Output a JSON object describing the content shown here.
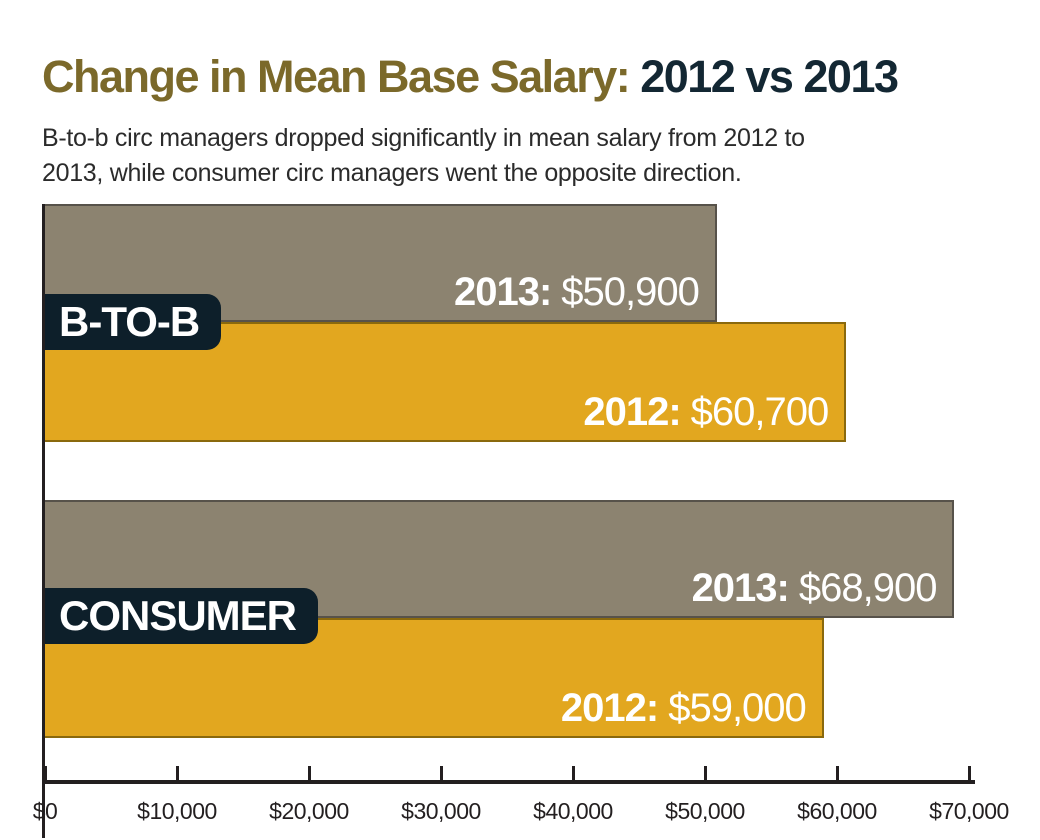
{
  "header": {
    "title_main": "Change in Mean Base Salary: ",
    "title_highlight": "2012 vs 2013",
    "subtitle": "B-to-b circ managers dropped significantly in mean salary from 2012 to 2013, while consumer circ managers went the opposite direction."
  },
  "colors": {
    "title_olive": "#7b692a",
    "title_navy": "#132733",
    "bar_2013_gray": "#8c8370",
    "bar_2012_gold": "#e2a71f",
    "badge_navy": "#0d1f2a",
    "axis_dark": "#231f20",
    "bar_label_white": "#ffffff"
  },
  "chart_data": {
    "type": "bar",
    "orientation": "horizontal",
    "title": "Change in Mean Base Salary: 2012 vs 2013",
    "categories": [
      "B-TO-B",
      "CONSUMER"
    ],
    "series": [
      {
        "name": "2013",
        "values": [
          50900,
          68900
        ],
        "color": "#8c8370"
      },
      {
        "name": "2012",
        "values": [
          60700,
          59000
        ],
        "color": "#e2a71f"
      }
    ],
    "xlim": [
      0,
      70000
    ],
    "x_tick_labels": [
      "$0",
      "$10,000",
      "$20,000",
      "$30,000",
      "$40,000",
      "$50,000",
      "$60,000",
      "$70,000"
    ],
    "grid": "off",
    "legend": "none",
    "value_labels_inside_bars": true
  },
  "groups": [
    {
      "label": "B-TO-B",
      "bars": [
        {
          "series": "2013",
          "year_label": "2013:",
          "amount_label": "$50,900",
          "value": 50900
        },
        {
          "series": "2012",
          "year_label": "2012:",
          "amount_label": "$60,700",
          "value": 60700
        }
      ]
    },
    {
      "label": "CONSUMER",
      "bars": [
        {
          "series": "2013",
          "year_label": "2013:",
          "amount_label": "$68,900",
          "value": 68900
        },
        {
          "series": "2012",
          "year_label": "2012:",
          "amount_label": "$59,000",
          "value": 59000
        }
      ]
    }
  ],
  "x_axis": {
    "ticks": [
      "$0",
      "$10,000",
      "$20,000",
      "$30,000",
      "$40,000",
      "$50,000",
      "$60,000",
      "$70,000"
    ]
  }
}
